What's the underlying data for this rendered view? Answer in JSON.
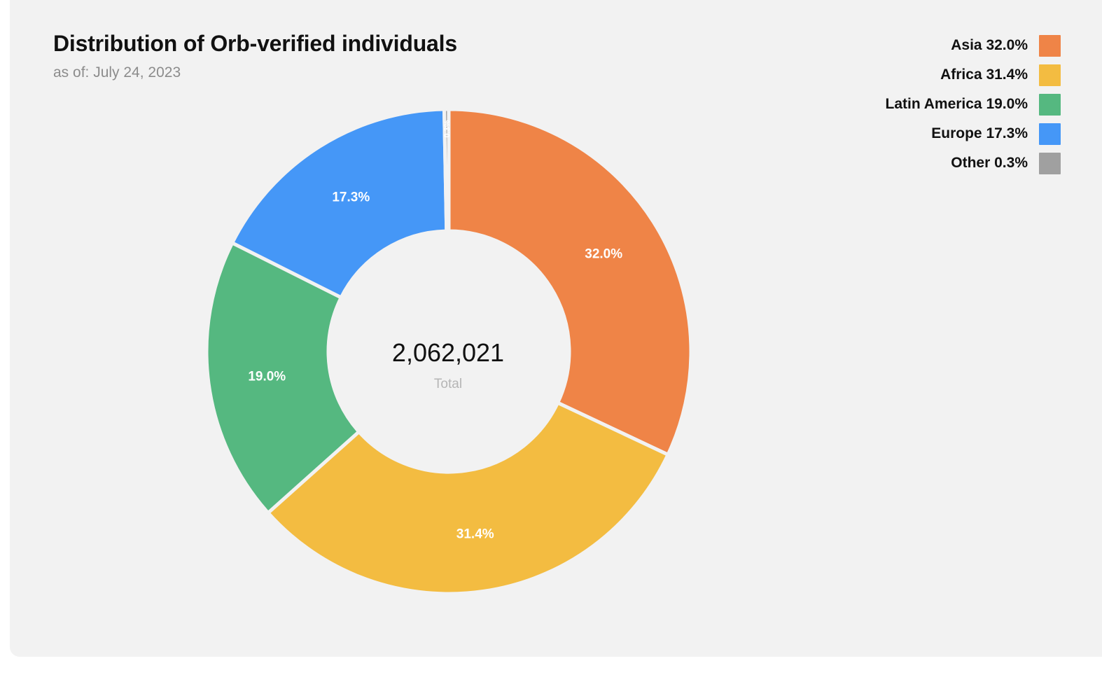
{
  "header": {
    "title": "Distribution of Orb-verified individuals",
    "subtitle": "as of: July 24, 2023"
  },
  "center": {
    "total_value": "2,062,021",
    "total_label": "Total"
  },
  "legend": {
    "items": [
      {
        "label": "Asia 32.0%",
        "color": "#ef8447"
      },
      {
        "label": "Africa 31.4%",
        "color": "#f3bc41"
      },
      {
        "label": "Latin America 19.0%",
        "color": "#55b880"
      },
      {
        "label": "Europe 17.3%",
        "color": "#4597f7"
      },
      {
        "label": "Other 0.3%",
        "color": "#a0a0a0"
      }
    ]
  },
  "chart_data": {
    "type": "pie",
    "donut": true,
    "title": "Distribution of Orb-verified individuals",
    "subtitle": "as of: July 24, 2023",
    "categories": [
      "Asia",
      "Africa",
      "Latin America",
      "Europe",
      "Other"
    ],
    "values": [
      32.0,
      31.4,
      19.0,
      17.3,
      0.3
    ],
    "value_labels": [
      "32.0%",
      "31.4%",
      "19.0%",
      "17.3%",
      "0.3%"
    ],
    "colors": [
      "#ef8447",
      "#f3bc41",
      "#55b880",
      "#4597f7",
      "#a0a0a0"
    ],
    "legend_position": "top-right",
    "center_text": "2,062,021",
    "center_subtext": "Total"
  }
}
